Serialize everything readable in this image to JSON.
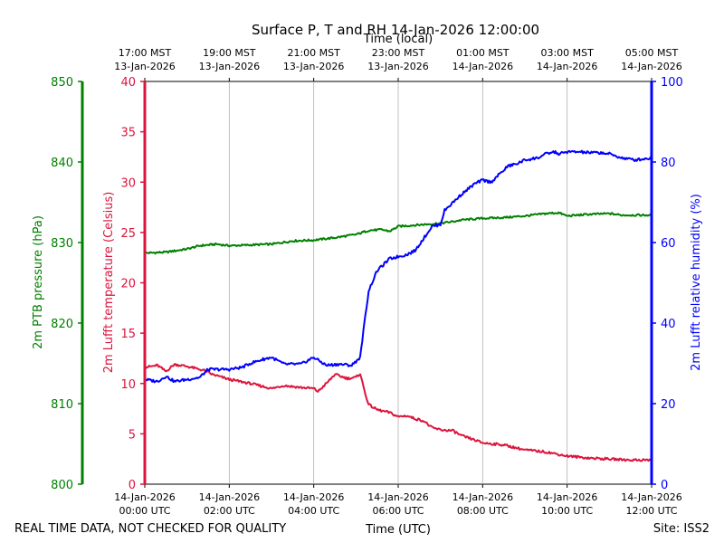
{
  "chart_data": {
    "type": "line",
    "title": "Surface P, T and RH 14-Jan-2026 12:00:00",
    "top_axis_label": "Time (local)",
    "xlabel": "Time (UTC)",
    "footer_left": "REAL TIME DATA, NOT CHECKED FOR QUALITY",
    "footer_right": "Site: ISS2",
    "x_range_hours": [
      0,
      12
    ],
    "grid": "vertical",
    "x_ticks_utc": [
      {
        "h": 0,
        "line1": "14-Jan-2026",
        "line2": "00:00 UTC"
      },
      {
        "h": 2,
        "line1": "14-Jan-2026",
        "line2": "02:00 UTC"
      },
      {
        "h": 4,
        "line1": "14-Jan-2026",
        "line2": "04:00 UTC"
      },
      {
        "h": 6,
        "line1": "14-Jan-2026",
        "line2": "06:00 UTC"
      },
      {
        "h": 8,
        "line1": "14-Jan-2026",
        "line2": "08:00 UTC"
      },
      {
        "h": 10,
        "line1": "14-Jan-2026",
        "line2": "10:00 UTC"
      },
      {
        "h": 12,
        "line1": "14-Jan-2026",
        "line2": "12:00 UTC"
      }
    ],
    "x_ticks_local": [
      {
        "h": 0,
        "line1": "17:00 MST",
        "line2": "13-Jan-2026"
      },
      {
        "h": 2,
        "line1": "19:00 MST",
        "line2": "13-Jan-2026"
      },
      {
        "h": 4,
        "line1": "21:00 MST",
        "line2": "13-Jan-2026"
      },
      {
        "h": 6,
        "line1": "23:00 MST",
        "line2": "13-Jan-2026"
      },
      {
        "h": 8,
        "line1": "01:00 MST",
        "line2": "14-Jan-2026"
      },
      {
        "h": 10,
        "line1": "03:00 MST",
        "line2": "14-Jan-2026"
      },
      {
        "h": 12,
        "line1": "05:00 MST",
        "line2": "14-Jan-2026"
      }
    ],
    "axes": {
      "pressure": {
        "label": "2m PTB pressure (hPa)",
        "color": "#008000",
        "ylim": [
          800,
          850
        ],
        "ticks": [
          800,
          810,
          820,
          830,
          840,
          850
        ]
      },
      "temperature": {
        "label": "2m Lufft temperature (Celsius)",
        "color": "#dc143c",
        "ylim": [
          0,
          40
        ],
        "ticks": [
          0,
          5,
          10,
          15,
          20,
          25,
          30,
          35,
          40
        ]
      },
      "humidity": {
        "label": "2m Lufft relative humidity (%)",
        "color": "#0000ff",
        "ylim": [
          0,
          100
        ],
        "ticks": [
          0,
          20,
          40,
          60,
          80,
          100
        ]
      }
    },
    "series": [
      {
        "name": "2m PTB pressure",
        "axis": "pressure",
        "color": "#008000",
        "points": [
          [
            0,
            828.7
          ],
          [
            0.5,
            828.8
          ],
          [
            1,
            829.2
          ],
          [
            1.3,
            829.6
          ],
          [
            1.7,
            829.8
          ],
          [
            2,
            829.6
          ],
          [
            2.5,
            829.7
          ],
          [
            3,
            829.8
          ],
          [
            3.5,
            830.2
          ],
          [
            4,
            830.3
          ],
          [
            4.5,
            830.6
          ],
          [
            5,
            831.0
          ],
          [
            5.3,
            831.5
          ],
          [
            5.6,
            831.6
          ],
          [
            5.8,
            831.4
          ],
          [
            6,
            832.0
          ],
          [
            6.5,
            832.2
          ],
          [
            7,
            832.4
          ],
          [
            7.3,
            832.6
          ],
          [
            7.5,
            832.8
          ],
          [
            8,
            833.0
          ],
          [
            8.5,
            833.1
          ],
          [
            9,
            833.3
          ],
          [
            9.5,
            833.6
          ],
          [
            9.8,
            833.7
          ],
          [
            10,
            833.3
          ],
          [
            10.5,
            833.5
          ],
          [
            11,
            833.6
          ],
          [
            11.3,
            833.4
          ],
          [
            11.6,
            833.4
          ],
          [
            12,
            833.4
          ]
        ]
      },
      {
        "name": "2m Lufft temperature",
        "axis": "temperature",
        "color": "#dc143c",
        "points": [
          [
            0,
            11.6
          ],
          [
            0.3,
            11.8
          ],
          [
            0.5,
            11.2
          ],
          [
            0.7,
            11.9
          ],
          [
            1,
            11.7
          ],
          [
            1.4,
            11.3
          ],
          [
            1.6,
            10.9
          ],
          [
            2,
            10.4
          ],
          [
            2.5,
            10.0
          ],
          [
            3,
            9.5
          ],
          [
            3.3,
            9.8
          ],
          [
            3.7,
            9.6
          ],
          [
            4,
            9.5
          ],
          [
            4.1,
            9.2
          ],
          [
            4.3,
            10.0
          ],
          [
            4.5,
            10.9
          ],
          [
            4.8,
            10.5
          ],
          [
            5,
            10.6
          ],
          [
            5.1,
            11.0
          ],
          [
            5.2,
            9.3
          ],
          [
            5.3,
            7.9
          ],
          [
            5.5,
            7.4
          ],
          [
            5.8,
            7.1
          ],
          [
            6,
            6.7
          ],
          [
            6.2,
            6.8
          ],
          [
            6.4,
            6.5
          ],
          [
            6.6,
            6.3
          ],
          [
            6.8,
            5.6
          ],
          [
            7,
            5.4
          ],
          [
            7.3,
            5.3
          ],
          [
            7.5,
            4.8
          ],
          [
            7.8,
            4.4
          ],
          [
            8,
            4.1
          ],
          [
            8.5,
            3.9
          ],
          [
            8.8,
            3.6
          ],
          [
            9,
            3.4
          ],
          [
            9.5,
            3.2
          ],
          [
            10,
            2.8
          ],
          [
            10.5,
            2.6
          ],
          [
            11,
            2.5
          ],
          [
            11.5,
            2.4
          ],
          [
            12,
            2.4
          ]
        ]
      },
      {
        "name": "2m Lufft relative humidity",
        "axis": "humidity",
        "color": "#0000ff",
        "points": [
          [
            0,
            26.0
          ],
          [
            0.3,
            25.5
          ],
          [
            0.5,
            26.8
          ],
          [
            0.7,
            25.5
          ],
          [
            1,
            26.0
          ],
          [
            1.3,
            26.5
          ],
          [
            1.5,
            28.5
          ],
          [
            2,
            28.5
          ],
          [
            2.3,
            29.0
          ],
          [
            2.5,
            30.0
          ],
          [
            2.8,
            31.0
          ],
          [
            3,
            31.5
          ],
          [
            3.3,
            29.8
          ],
          [
            3.7,
            29.8
          ],
          [
            4,
            31.5
          ],
          [
            4.3,
            29.5
          ],
          [
            4.6,
            29.8
          ],
          [
            4.9,
            29.5
          ],
          [
            5.1,
            31.5
          ],
          [
            5.2,
            40.0
          ],
          [
            5.3,
            48.0
          ],
          [
            5.5,
            53.0
          ],
          [
            5.8,
            56.0
          ],
          [
            6,
            56.5
          ],
          [
            6.2,
            57.0
          ],
          [
            6.4,
            58.0
          ],
          [
            6.5,
            59.5
          ],
          [
            6.6,
            61.0
          ],
          [
            6.8,
            64.0
          ],
          [
            7,
            64.5
          ],
          [
            7.1,
            68.0
          ],
          [
            7.3,
            70.0
          ],
          [
            7.5,
            72.0
          ],
          [
            7.8,
            74.5
          ],
          [
            8,
            75.5
          ],
          [
            8.2,
            75.0
          ],
          [
            8.4,
            77.0
          ],
          [
            8.6,
            79.0
          ],
          [
            8.8,
            79.5
          ],
          [
            9,
            80.5
          ],
          [
            9.3,
            81.0
          ],
          [
            9.5,
            82.0
          ],
          [
            9.7,
            82.5
          ],
          [
            9.8,
            82.0
          ],
          [
            10,
            82.5
          ],
          [
            10.3,
            82.5
          ],
          [
            10.5,
            82.3
          ],
          [
            10.8,
            82.3
          ],
          [
            11,
            82.0
          ],
          [
            11.3,
            81.0
          ],
          [
            11.6,
            80.5
          ],
          [
            12,
            81.0
          ]
        ]
      }
    ]
  }
}
